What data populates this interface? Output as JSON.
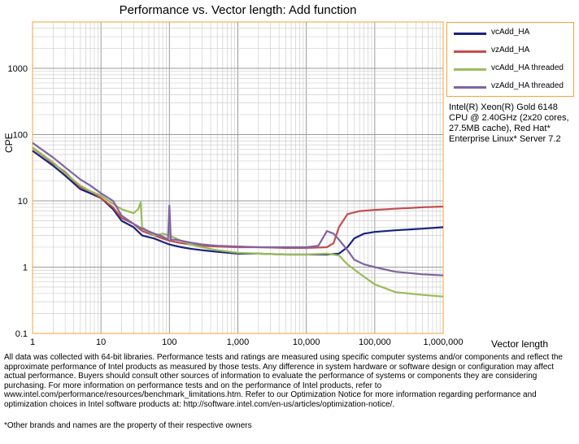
{
  "chart_data": {
    "type": "line",
    "title": "Performance vs. Vector length: Add function",
    "xlabel": "Vector length",
    "ylabel": "CPE",
    "x_scale": "log",
    "y_scale": "log",
    "xlim": [
      1,
      1000000
    ],
    "ylim": [
      0.1,
      5000
    ],
    "x_tick_labels": [
      "1",
      "10",
      "100",
      "1,000",
      "10,000",
      "100,000",
      "1,000,000"
    ],
    "x_tick_values": [
      1,
      10,
      100,
      1000,
      10000,
      100000,
      1000000
    ],
    "y_tick_labels": [
      "0.1",
      "1",
      "10",
      "100",
      "1000"
    ],
    "y_tick_values": [
      0.1,
      1,
      10,
      100,
      1000
    ],
    "grid": true,
    "legend_position": "top-right",
    "series": [
      {
        "name": "vcAdd_HA",
        "color": "#1a237e",
        "x": [
          1,
          2,
          3,
          5,
          7,
          10,
          15,
          20,
          30,
          40,
          60,
          80,
          100,
          120,
          150,
          200,
          300,
          500,
          1000,
          2000,
          5000,
          10000,
          20000,
          30000,
          40000,
          50000,
          70000,
          100000,
          200000,
          500000,
          1000000
        ],
        "y": [
          57,
          34,
          24,
          15,
          13,
          11,
          7.5,
          5,
          4,
          3,
          2.7,
          2.4,
          2.2,
          2.1,
          2.0,
          1.9,
          1.8,
          1.7,
          1.6,
          1.6,
          1.55,
          1.55,
          1.55,
          1.6,
          2.0,
          2.7,
          3.2,
          3.4,
          3.6,
          3.8,
          4.0
        ]
      },
      {
        "name": "vzAdd_HA",
        "color": "#c0504d",
        "x": [
          1,
          2,
          3,
          5,
          7,
          10,
          15,
          20,
          30,
          40,
          60,
          80,
          100,
          150,
          200,
          300,
          500,
          1000,
          2000,
          5000,
          10000,
          20000,
          25000,
          30000,
          40000,
          60000,
          100000,
          200000,
          500000,
          1000000
        ],
        "y": [
          63,
          37,
          27,
          16,
          14,
          11,
          8,
          5.5,
          4.5,
          3.5,
          3.0,
          2.7,
          2.5,
          2.3,
          2.2,
          2.1,
          2.05,
          2.0,
          2.0,
          1.95,
          1.95,
          2.0,
          2.3,
          4.0,
          6.3,
          7.0,
          7.3,
          7.6,
          8.0,
          8.2
        ]
      },
      {
        "name": "vcAdd_HA threaded",
        "color": "#9bbb59",
        "x": [
          1,
          2,
          3,
          5,
          7,
          10,
          15,
          20,
          30,
          35,
          38,
          40,
          60,
          80,
          100,
          150,
          200,
          300,
          500,
          1000,
          2000,
          5000,
          10000,
          20000,
          30000,
          40000,
          60000,
          100000,
          200000,
          500000,
          1000000
        ],
        "y": [
          64,
          38,
          26,
          17,
          14,
          12,
          9,
          7.5,
          6.5,
          7.5,
          9.5,
          4.0,
          3.0,
          3.2,
          3.0,
          2.5,
          2.2,
          2.0,
          1.8,
          1.65,
          1.6,
          1.55,
          1.55,
          1.6,
          1.5,
          1.1,
          0.8,
          0.55,
          0.42,
          0.38,
          0.36
        ]
      },
      {
        "name": "vzAdd_HA threaded",
        "color": "#8064a2",
        "x": [
          1,
          2,
          3,
          5,
          7,
          10,
          15,
          20,
          30,
          40,
          60,
          80,
          95,
          100,
          105,
          120,
          150,
          200,
          300,
          500,
          1000,
          2000,
          5000,
          10000,
          15000,
          20000,
          25000,
          30000,
          40000,
          50000,
          70000,
          100000,
          200000,
          500000,
          1000000
        ],
        "y": [
          75,
          45,
          32,
          21,
          17,
          13,
          10,
          6,
          4.5,
          3.8,
          3.2,
          2.9,
          2.6,
          8.5,
          2.6,
          2.6,
          2.5,
          2.35,
          2.2,
          2.1,
          2.05,
          2.0,
          2.0,
          2.0,
          2.1,
          3.5,
          3.2,
          2.6,
          1.8,
          1.3,
          1.1,
          1.0,
          0.85,
          0.78,
          0.75
        ]
      }
    ]
  },
  "cpu_note": "Intel(R) Xeon(R) Gold 6148 CPU @ 2.40GHz (2x20 cores, 27.5MB cache), Red Hat* Enterprise Linux* Server 7.2",
  "disclaimer": "All data was collected with 64-bit libraries. Performance tests and ratings are measured using specific computer systems and/or components and reflect the approximate performance of Intel products as measured by those tests. Any difference in system hardware or software design or configuration may affect actual performance. Buyers should consult other sources of information to evaluate the performance of systems or components they are considering purchasing. For more information on performance tests and on the performance of Intel products, refer to www.intel.com/performance/resources/benchmark_limitations.htm. Refer to our Optimization Notice for more information regarding performance and optimization choices in Intel software products at: http://software.intel.com/en-us/articles/optimization-notice/.",
  "footnote": "*Other brands and names are the property of their respective owners"
}
